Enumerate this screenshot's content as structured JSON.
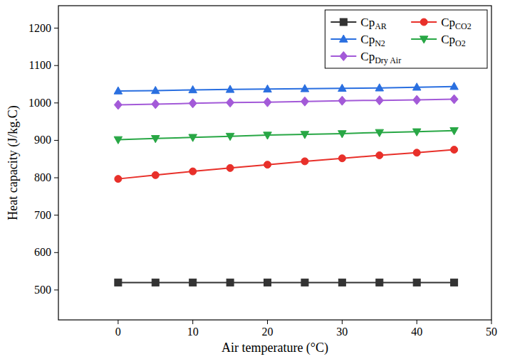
{
  "chart_data": {
    "type": "line",
    "x_label": "Air temperature (°C)",
    "y_label": "Heat capacity (J/kg.C)",
    "x": [
      0,
      5,
      10,
      15,
      20,
      25,
      30,
      35,
      40,
      45
    ],
    "xlim": [
      -8,
      50
    ],
    "xticks": [
      0,
      10,
      20,
      30,
      40,
      50
    ],
    "ylim": [
      420,
      1260
    ],
    "yticks": [
      500,
      600,
      700,
      800,
      900,
      1000,
      1100,
      1200
    ],
    "grid": false,
    "legend": "upper right",
    "series": [
      {
        "name": "CpAR",
        "color": "#333333",
        "marker": "square",
        "values": [
          520,
          520,
          520,
          520,
          520,
          520,
          520,
          520,
          520,
          520
        ]
      },
      {
        "name": "CpCO2",
        "color": "#e8302a",
        "marker": "circle",
        "values": [
          797,
          807,
          817,
          826,
          835,
          844,
          852,
          860,
          867,
          875
        ]
      },
      {
        "name": "CpN2",
        "color": "#2a6fe0",
        "marker": "triangle",
        "values": [
          1032,
          1033,
          1035,
          1036,
          1037,
          1038,
          1039,
          1040,
          1042,
          1044
        ]
      },
      {
        "name": "CpO2",
        "color": "#28a745",
        "marker": "triangle-down",
        "values": [
          902,
          905,
          908,
          911,
          914,
          916,
          918,
          921,
          923,
          926
        ]
      },
      {
        "name": "CpDry Air",
        "color": "#a35ad8",
        "marker": "diamond",
        "values": [
          995,
          997,
          999,
          1001,
          1002,
          1004,
          1006,
          1007,
          1008,
          1010
        ]
      }
    ]
  }
}
